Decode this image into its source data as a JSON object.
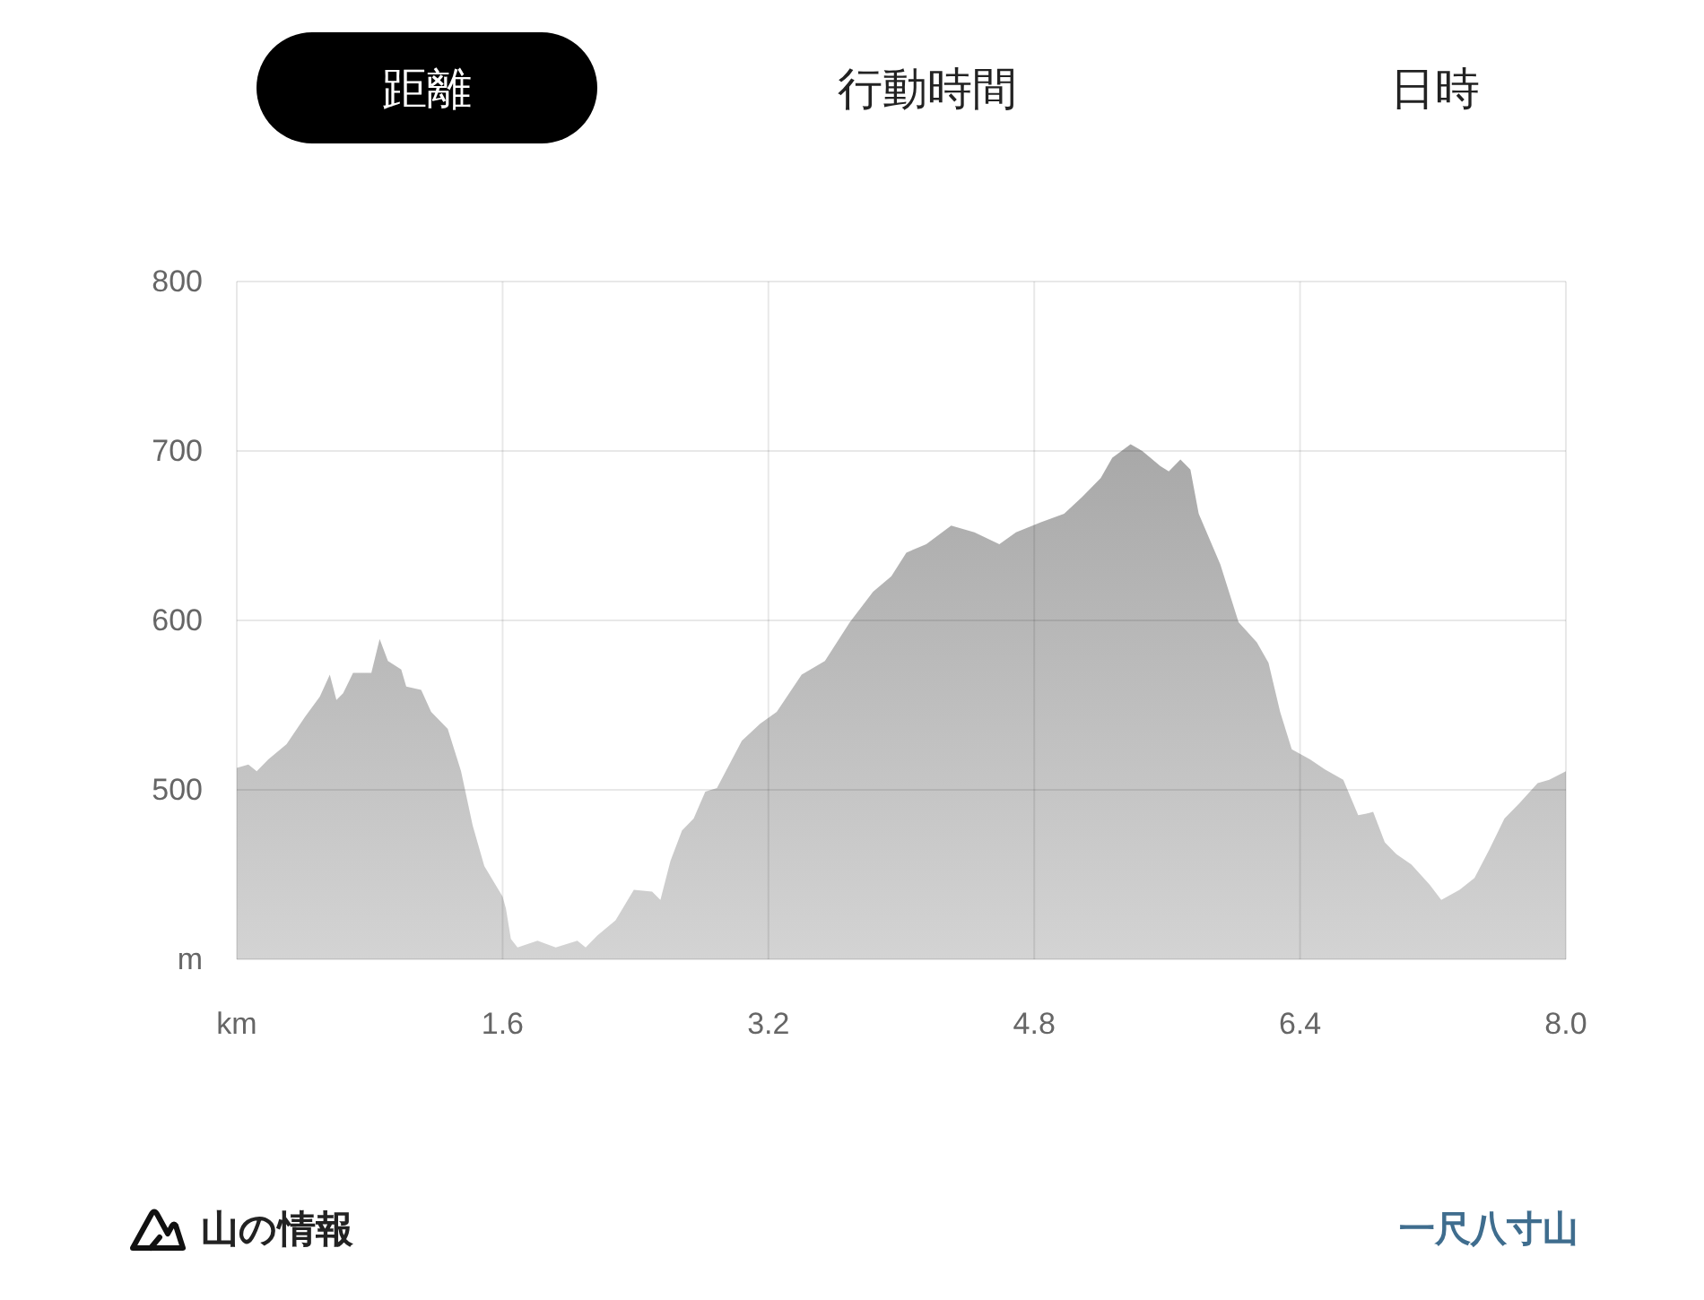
{
  "chart_data": {
    "type": "area",
    "x": [
      0,
      0.07,
      0.12,
      0.19,
      0.3,
      0.41,
      0.5,
      0.56,
      0.6,
      0.64,
      0.7,
      0.81,
      0.86,
      0.91,
      0.99,
      1.02,
      1.11,
      1.17,
      1.27,
      1.35,
      1.42,
      1.49,
      1.6,
      1.62,
      1.65,
      1.69,
      1.81,
      1.92,
      2.05,
      2.1,
      2.17,
      2.28,
      2.39,
      2.5,
      2.55,
      2.61,
      2.68,
      2.75,
      2.82,
      2.89,
      3.04,
      3.15,
      3.25,
      3.4,
      3.54,
      3.69,
      3.83,
      3.94,
      4.03,
      4.15,
      4.3,
      4.44,
      4.59,
      4.69,
      4.84,
      4.98,
      5.09,
      5.2,
      5.27,
      5.38,
      5.45,
      5.56,
      5.61,
      5.68,
      5.74,
      5.79,
      5.92,
      6.03,
      6.14,
      6.21,
      6.28,
      6.35,
      6.46,
      6.55,
      6.66,
      6.75,
      6.8,
      6.84,
      6.91,
      6.98,
      7.07,
      7.18,
      7.25,
      7.36,
      7.45,
      7.54,
      7.63,
      7.72,
      7.83,
      7.9,
      8.0
    ],
    "values": [
      513,
      515,
      511,
      518,
      527,
      543,
      555,
      568,
      553,
      557,
      569,
      569,
      589,
      576,
      571,
      561,
      559,
      546,
      536,
      511,
      479,
      455,
      437,
      430,
      412,
      407,
      411,
      407,
      411,
      407,
      414,
      423,
      441,
      440,
      435,
      458,
      476,
      483,
      499,
      501,
      529,
      539,
      546,
      568,
      576,
      599,
      617,
      626,
      640,
      645,
      656,
      652,
      645,
      652,
      658,
      663,
      673,
      684,
      696,
      704,
      700,
      691,
      688,
      695,
      689,
      663,
      633,
      599,
      587,
      575,
      546,
      524,
      518,
      512,
      506,
      485,
      486,
      487,
      469,
      462,
      456,
      444,
      435,
      441,
      448,
      465,
      483,
      492,
      504,
      506,
      511
    ],
    "color": "#a8a8a8",
    "xlim": [
      0,
      8
    ],
    "xticks": [
      {
        "value": 0,
        "label": "km"
      },
      1.6,
      3.2,
      4.8,
      6.4,
      {
        "value": 8,
        "label": "8.0"
      }
    ],
    "ylim": [
      400,
      800
    ],
    "yticks": [
      {
        "value": 400,
        "label": "m"
      },
      500,
      600,
      700,
      800
    ],
    "grid": true,
    "annotations": [
      "距離",
      "行動時間",
      "日時",
      "山の情報",
      "一尺八寸山"
    ]
  }
}
